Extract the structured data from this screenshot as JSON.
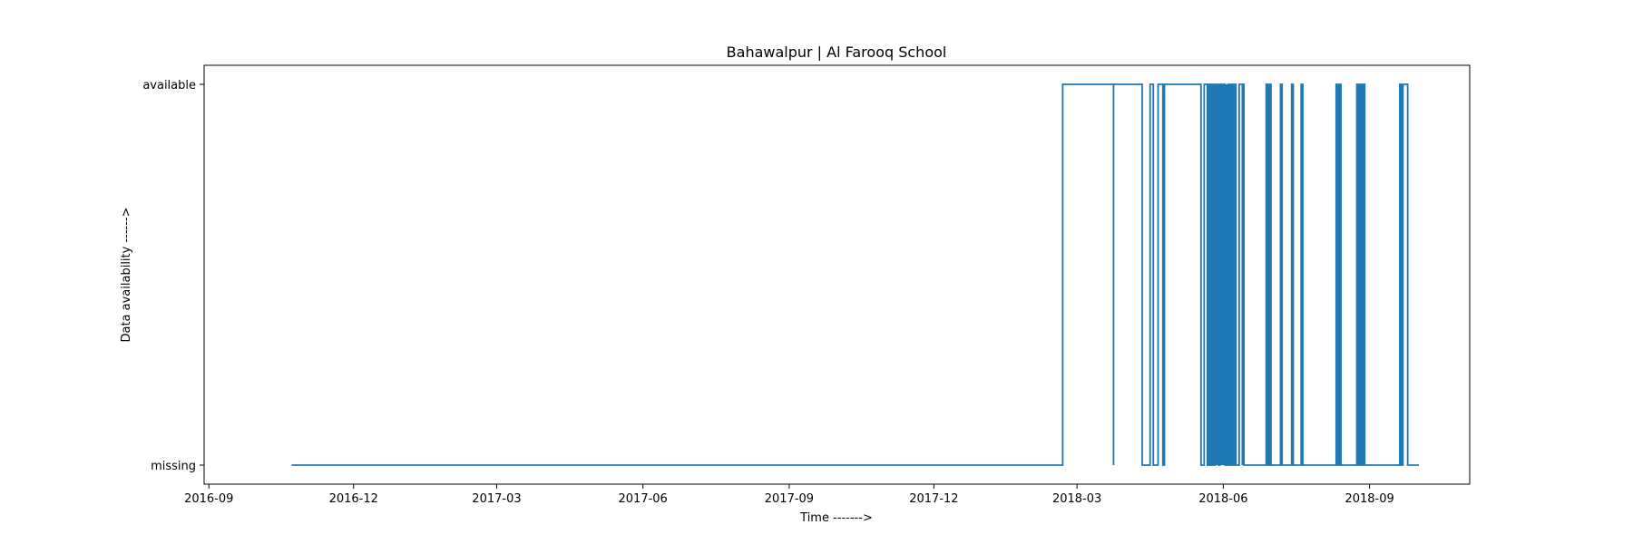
{
  "chart_data": {
    "type": "line",
    "title": "Bahawalpur | Al Farooq School",
    "xlabel": "Time ------->",
    "ylabel": "Data availability ------>",
    "x_ticks": [
      "2016-09",
      "2016-12",
      "2017-03",
      "2017-06",
      "2017-09",
      "2017-12",
      "2018-03",
      "2018-06",
      "2018-09"
    ],
    "y_ticks": [
      "missing",
      "available"
    ],
    "xlim": [
      "2016-08-29",
      "2018-11-03"
    ],
    "ylim": [
      -0.05,
      1.05
    ],
    "grid": false,
    "line_style": "step-post",
    "series": [
      {
        "color": "#1f77b4",
        "points": [
          [
            "2016-10-23",
            0
          ],
          [
            "2018-02-20",
            1
          ],
          [
            "2018-03-24",
            0
          ],
          [
            "2018-03-24",
            1
          ],
          [
            "2018-04-11",
            0
          ],
          [
            "2018-04-16",
            1
          ],
          [
            "2018-04-18",
            0
          ],
          [
            "2018-04-21",
            1
          ],
          [
            "2018-04-24",
            0
          ],
          [
            "2018-04-25",
            1
          ],
          [
            "2018-05-18",
            0
          ],
          [
            "2018-05-20",
            1
          ],
          [
            "2018-05-22",
            0
          ],
          [
            "2018-05-23",
            1
          ],
          [
            "2018-05-24",
            0
          ],
          [
            "2018-05-25",
            1
          ],
          [
            "2018-05-26",
            0
          ],
          [
            "2018-05-27",
            1
          ],
          [
            "2018-05-28",
            0
          ],
          [
            "2018-05-28",
            1
          ],
          [
            "2018-05-29",
            0
          ],
          [
            "2018-05-30",
            1
          ],
          [
            "2018-05-31",
            0
          ],
          [
            "2018-05-31",
            1
          ],
          [
            "2018-06-01",
            0
          ],
          [
            "2018-06-01",
            1
          ],
          [
            "2018-06-02",
            0
          ],
          [
            "2018-06-03",
            1
          ],
          [
            "2018-06-03",
            0
          ],
          [
            "2018-06-04",
            1
          ],
          [
            "2018-06-05",
            0
          ],
          [
            "2018-06-06",
            1
          ],
          [
            "2018-06-07",
            0
          ],
          [
            "2018-06-08",
            1
          ],
          [
            "2018-06-09",
            0
          ],
          [
            "2018-06-11",
            1
          ],
          [
            "2018-06-13",
            0
          ],
          [
            "2018-06-13",
            1
          ],
          [
            "2018-06-14",
            0
          ],
          [
            "2018-06-28",
            1
          ],
          [
            "2018-06-29",
            0
          ],
          [
            "2018-06-30",
            1
          ],
          [
            "2018-07-01",
            0
          ],
          [
            "2018-07-07",
            1
          ],
          [
            "2018-07-08",
            0
          ],
          [
            "2018-07-14",
            1
          ],
          [
            "2018-07-15",
            0
          ],
          [
            "2018-07-20",
            1
          ],
          [
            "2018-07-21",
            0
          ],
          [
            "2018-08-11",
            1
          ],
          [
            "2018-08-12",
            0
          ],
          [
            "2018-08-13",
            1
          ],
          [
            "2018-08-14",
            0
          ],
          [
            "2018-08-24",
            1
          ],
          [
            "2018-08-25",
            0
          ],
          [
            "2018-08-26",
            1
          ],
          [
            "2018-08-27",
            0
          ],
          [
            "2018-08-28",
            1
          ],
          [
            "2018-08-29",
            0
          ],
          [
            "2018-09-20",
            1
          ],
          [
            "2018-09-21",
            0
          ],
          [
            "2018-09-22",
            1
          ],
          [
            "2018-09-25",
            0
          ],
          [
            "2018-10-02",
            0
          ]
        ]
      }
    ]
  }
}
